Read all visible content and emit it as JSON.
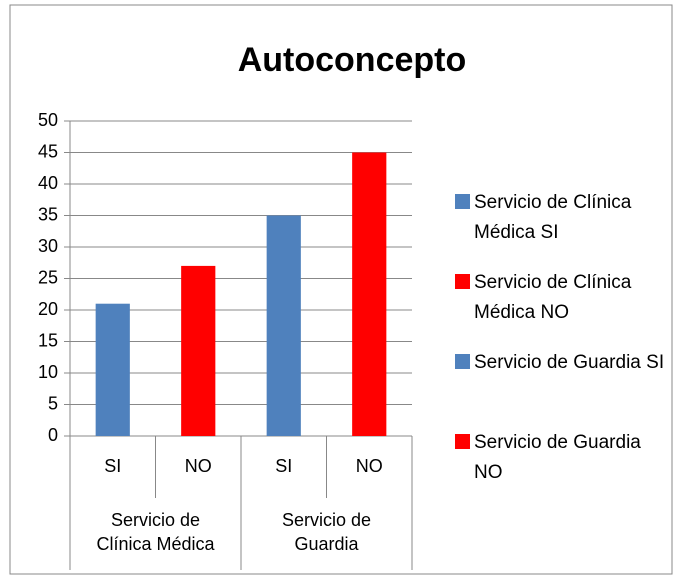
{
  "chart_data": {
    "type": "bar",
    "title": "Autoconcepto",
    "category_groups": [
      {
        "name": "Servicio de Clínica Médica",
        "categories": [
          "SI",
          "NO"
        ]
      },
      {
        "name": "Servicio de Guardia",
        "categories": [
          "SI",
          "NO"
        ]
      }
    ],
    "series": [
      {
        "name": "Servicio de Clínica Médica SI",
        "color": "#4f81bd",
        "values": [
          21,
          null,
          null,
          null
        ]
      },
      {
        "name": "Servicio de Clínica Médica NO",
        "color": "#ff0000",
        "values": [
          null,
          27,
          null,
          null
        ]
      },
      {
        "name": "Servicio de Guardia SI",
        "color": "#4f81bd",
        "values": [
          null,
          null,
          35,
          null
        ]
      },
      {
        "name": "Servicio de Guardia NO",
        "color": "#ff0000",
        "values": [
          null,
          null,
          null,
          45
        ]
      }
    ],
    "ylim": [
      0,
      50
    ],
    "yticks": [
      0,
      5,
      10,
      15,
      20,
      25,
      30,
      35,
      40,
      45,
      50
    ],
    "grid": true,
    "legend": "right"
  }
}
